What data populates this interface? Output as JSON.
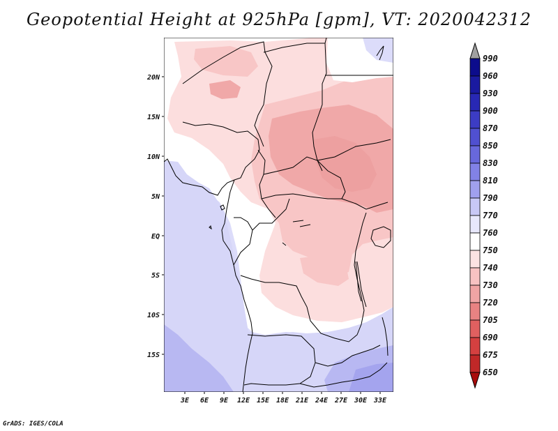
{
  "title": "Geopotential Height at 925hPa [gpm], VT: 2020042312",
  "footer": "GrADS: IGES/COLA",
  "map": {
    "variable": "Geopotential Height",
    "level": "925hPa",
    "units": "gpm",
    "valid_time": "2020042312",
    "lat_labels": [
      "20N",
      "15N",
      "10N",
      "5N",
      "EQ",
      "5S",
      "10S",
      "15S"
    ],
    "lon_labels": [
      "3E",
      "6E",
      "9E",
      "12E",
      "15E",
      "18E",
      "21E",
      "24E",
      "27E",
      "30E",
      "33E"
    ]
  },
  "colorbar": {
    "levels": [
      "990",
      "960",
      "930",
      "900",
      "870",
      "850",
      "830",
      "810",
      "790",
      "770",
      "760",
      "750",
      "740",
      "730",
      "720",
      "705",
      "690",
      "675",
      "650"
    ],
    "colors": [
      "#a0a0a0",
      "#0c0c8c",
      "#1a1aa0",
      "#2828b4",
      "#3c3cc4",
      "#5050d0",
      "#6868dc",
      "#8282e6",
      "#a0a0ee",
      "#c8c8f6",
      "#e8e8fc",
      "#ffffff",
      "#fce2e2",
      "#f8c2c2",
      "#f0a4a4",
      "#e88282",
      "#e06060",
      "#d44040",
      "#c02828",
      "#a80c0c"
    ]
  }
}
